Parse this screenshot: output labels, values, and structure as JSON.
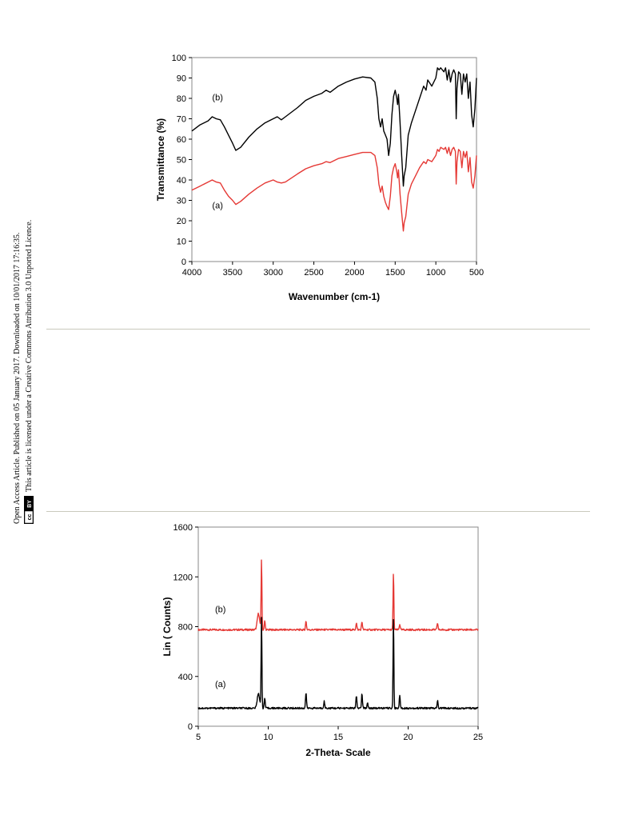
{
  "sidebar": {
    "line1": "Open Access Article. Published on 05 January 2017. Downloaded on 10/01/2017 17:16:35.",
    "line2": "This article is licensed under a Creative Commons Attribution 3.0 Unported Licence.",
    "cc_label": "cc",
    "by_label": "BY"
  },
  "chart_data": [
    {
      "type": "line",
      "xlabel": "Wavenumber (cm-1)",
      "ylabel": "Transmittance (%)",
      "xlim": [
        4000,
        500
      ],
      "ylim": [
        0,
        100
      ],
      "x_ticks": [
        "4000",
        "3500",
        "3000",
        "2500",
        "2000",
        "1500",
        "1000",
        "500"
      ],
      "y_ticks": [
        "0",
        "10",
        "20",
        "30",
        "40",
        "50",
        "60",
        "70",
        "80",
        "90",
        "100"
      ],
      "annotations": [
        {
          "label": "(b)",
          "x": 3750,
          "y": 79
        },
        {
          "label": "(a)",
          "x": 3750,
          "y": 26
        }
      ],
      "series": [
        {
          "color": "#000000",
          "points": [
            [
              4000,
              64
            ],
            [
              3900,
              67
            ],
            [
              3800,
              69
            ],
            [
              3750,
              71
            ],
            [
              3700,
              70
            ],
            [
              3650,
              69.5
            ],
            [
              3600,
              66
            ],
            [
              3550,
              62
            ],
            [
              3500,
              58
            ],
            [
              3460,
              54.5
            ],
            [
              3400,
              56
            ],
            [
              3300,
              61
            ],
            [
              3200,
              65
            ],
            [
              3100,
              68
            ],
            [
              3000,
              70
            ],
            [
              2950,
              71
            ],
            [
              2900,
              69.5
            ],
            [
              2850,
              71
            ],
            [
              2700,
              75.5
            ],
            [
              2600,
              79
            ],
            [
              2500,
              81
            ],
            [
              2400,
              82.5
            ],
            [
              2350,
              84
            ],
            [
              2300,
              83
            ],
            [
              2200,
              86
            ],
            [
              2100,
              88
            ],
            [
              2000,
              89.5
            ],
            [
              1900,
              90.5
            ],
            [
              1800,
              90
            ],
            [
              1750,
              88
            ],
            [
              1720,
              80
            ],
            [
              1700,
              70
            ],
            [
              1680,
              66
            ],
            [
              1660,
              70
            ],
            [
              1640,
              64
            ],
            [
              1620,
              62
            ],
            [
              1600,
              60
            ],
            [
              1580,
              52
            ],
            [
              1560,
              58
            ],
            [
              1540,
              72
            ],
            [
              1520,
              81
            ],
            [
              1500,
              84
            ],
            [
              1480,
              80
            ],
            [
              1470,
              77
            ],
            [
              1460,
              82
            ],
            [
              1440,
              68
            ],
            [
              1420,
              52
            ],
            [
              1400,
              37
            ],
            [
              1390,
              42
            ],
            [
              1370,
              46
            ],
            [
              1340,
              62
            ],
            [
              1300,
              68
            ],
            [
              1250,
              74
            ],
            [
              1200,
              80
            ],
            [
              1150,
              86
            ],
            [
              1120,
              84
            ],
            [
              1100,
              89
            ],
            [
              1050,
              86
            ],
            [
              1000,
              90
            ],
            [
              980,
              95
            ],
            [
              960,
              94
            ],
            [
              940,
              95
            ],
            [
              900,
              93
            ],
            [
              880,
              95
            ],
            [
              860,
              89
            ],
            [
              840,
              94
            ],
            [
              820,
              88
            ],
            [
              800,
              92
            ],
            [
              780,
              94
            ],
            [
              760,
              92
            ],
            [
              750,
              70
            ],
            [
              740,
              85
            ],
            [
              720,
              93
            ],
            [
              700,
              92
            ],
            [
              680,
              82
            ],
            [
              660,
              92
            ],
            [
              640,
              88
            ],
            [
              620,
              92
            ],
            [
              600,
              80
            ],
            [
              580,
              88
            ],
            [
              560,
              72
            ],
            [
              540,
              66
            ],
            [
              520,
              75
            ],
            [
              500,
              90
            ]
          ]
        },
        {
          "color": "#e53935",
          "points": [
            [
              4000,
              35
            ],
            [
              3900,
              37
            ],
            [
              3800,
              39
            ],
            [
              3750,
              40
            ],
            [
              3700,
              39
            ],
            [
              3650,
              38.5
            ],
            [
              3600,
              35
            ],
            [
              3550,
              32
            ],
            [
              3500,
              30
            ],
            [
              3460,
              28
            ],
            [
              3400,
              29.5
            ],
            [
              3300,
              33
            ],
            [
              3200,
              36
            ],
            [
              3100,
              38.5
            ],
            [
              3000,
              40
            ],
            [
              2950,
              39
            ],
            [
              2900,
              38.5
            ],
            [
              2850,
              39
            ],
            [
              2700,
              43
            ],
            [
              2600,
              45.5
            ],
            [
              2500,
              47
            ],
            [
              2400,
              48
            ],
            [
              2350,
              49
            ],
            [
              2300,
              48.5
            ],
            [
              2200,
              50.5
            ],
            [
              2100,
              51.5
            ],
            [
              2000,
              52.5
            ],
            [
              1900,
              53.5
            ],
            [
              1800,
              53.5
            ],
            [
              1750,
              52
            ],
            [
              1720,
              46
            ],
            [
              1700,
              38
            ],
            [
              1680,
              34
            ],
            [
              1660,
              37
            ],
            [
              1640,
              32
            ],
            [
              1620,
              29
            ],
            [
              1600,
              27
            ],
            [
              1580,
              25.5
            ],
            [
              1560,
              32
            ],
            [
              1540,
              42
            ],
            [
              1520,
              46
            ],
            [
              1500,
              48
            ],
            [
              1480,
              44
            ],
            [
              1470,
              41
            ],
            [
              1460,
              45
            ],
            [
              1440,
              33
            ],
            [
              1420,
              24
            ],
            [
              1400,
              15
            ],
            [
              1390,
              19
            ],
            [
              1370,
              22
            ],
            [
              1340,
              33
            ],
            [
              1300,
              38
            ],
            [
              1250,
              42
            ],
            [
              1200,
              46
            ],
            [
              1150,
              49
            ],
            [
              1120,
              48
            ],
            [
              1100,
              50
            ],
            [
              1050,
              49
            ],
            [
              1000,
              52
            ],
            [
              980,
              55
            ],
            [
              960,
              54
            ],
            [
              940,
              56
            ],
            [
              900,
              55
            ],
            [
              880,
              56
            ],
            [
              860,
              53
            ],
            [
              840,
              56
            ],
            [
              820,
              52
            ],
            [
              800,
              55
            ],
            [
              780,
              56
            ],
            [
              760,
              54
            ],
            [
              750,
              38
            ],
            [
              740,
              49
            ],
            [
              720,
              55
            ],
            [
              700,
              54
            ],
            [
              680,
              46
            ],
            [
              660,
              54
            ],
            [
              640,
              51
            ],
            [
              620,
              54
            ],
            [
              600,
              44
            ],
            [
              580,
              51
            ],
            [
              560,
              39
            ],
            [
              540,
              36
            ],
            [
              520,
              42
            ],
            [
              500,
              52
            ]
          ]
        }
      ]
    },
    {
      "type": "line",
      "xlabel": "2-Theta- Scale",
      "ylabel": "Lin ( Counts)",
      "xlim": [
        5,
        25
      ],
      "ylim": [
        0,
        1600
      ],
      "x_ticks": [
        "5",
        "10",
        "15",
        "20",
        "25"
      ],
      "y_ticks": [
        "0",
        "400",
        "800",
        "1200",
        "1600"
      ],
      "annotations": [
        {
          "label": "(b)",
          "x": 6.2,
          "y": 915
        },
        {
          "label": "(a)",
          "x": 6.2,
          "y": 315
        }
      ],
      "series": [
        {
          "color": "#e53935",
          "baseline": 775,
          "peaks": [
            [
              9.3,
              130,
              0.12
            ],
            [
              9.52,
              570,
              0.04
            ],
            [
              9.75,
              70,
              0.05
            ],
            [
              12.7,
              70,
              0.05
            ],
            [
              16.3,
              55,
              0.05
            ],
            [
              16.7,
              65,
              0.05
            ],
            [
              18.95,
              460,
              0.04
            ],
            [
              19.4,
              45,
              0.05
            ],
            [
              22.1,
              55,
              0.05
            ]
          ]
        },
        {
          "color": "#000000",
          "baseline": 145,
          "peaks": [
            [
              9.3,
              120,
              0.12
            ],
            [
              9.52,
              740,
              0.04
            ],
            [
              9.75,
              80,
              0.05
            ],
            [
              12.7,
              125,
              0.05
            ],
            [
              14.0,
              55,
              0.05
            ],
            [
              16.3,
              95,
              0.05
            ],
            [
              16.7,
              115,
              0.05
            ],
            [
              17.1,
              45,
              0.05
            ],
            [
              18.95,
              730,
              0.04
            ],
            [
              19.4,
              100,
              0.05
            ],
            [
              22.1,
              60,
              0.05
            ]
          ]
        }
      ]
    }
  ]
}
